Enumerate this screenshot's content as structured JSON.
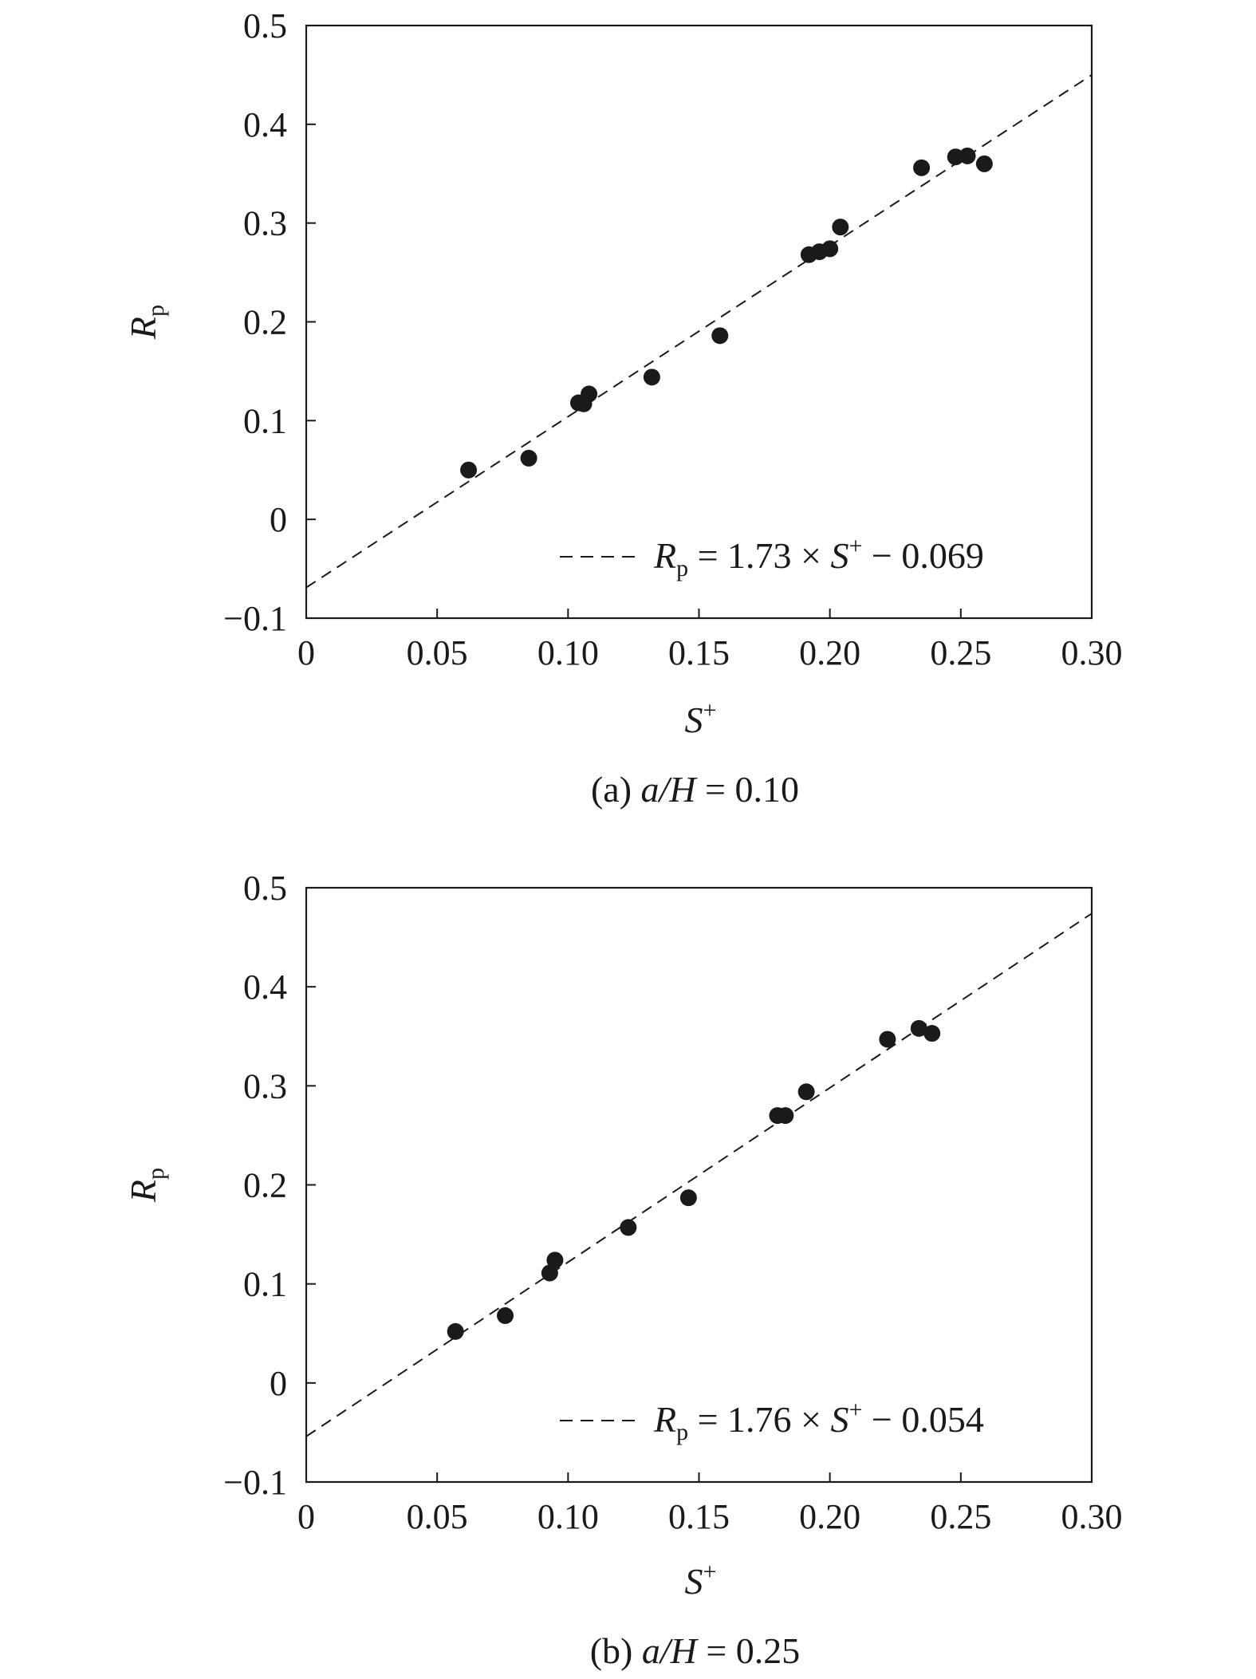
{
  "chart_data": [
    {
      "type": "scatter",
      "caption": "(a) a/H = 0.10",
      "caption_parts": {
        "prefix": "(a) ",
        "var": "a/H",
        "rest": " = 0.10"
      },
      "xlabel": "S⁺",
      "ylabel": "Rp",
      "xlim": [
        0,
        0.3
      ],
      "ylim": [
        -0.1,
        0.5
      ],
      "xticks": [
        "0",
        "0.05",
        "0.10",
        "0.15",
        "0.20",
        "0.25",
        "0.30"
      ],
      "yticks": [
        "−0.1",
        "0",
        "0.1",
        "0.2",
        "0.3",
        "0.4",
        "0.5"
      ],
      "grid": false,
      "legend_position": "bottom-right",
      "legend_parts": {
        "lhs": "R",
        "sub": "p",
        "mid": " = 1.73 × ",
        "svar": "S",
        "sup": "+",
        "rhs": " − 0.069"
      },
      "fit": {
        "slope": 1.73,
        "intercept": -0.069
      },
      "points": [
        {
          "x": 0.062,
          "y": 0.05
        },
        {
          "x": 0.085,
          "y": 0.062
        },
        {
          "x": 0.104,
          "y": 0.118
        },
        {
          "x": 0.106,
          "y": 0.117
        },
        {
          "x": 0.108,
          "y": 0.127
        },
        {
          "x": 0.132,
          "y": 0.144
        },
        {
          "x": 0.158,
          "y": 0.186
        },
        {
          "x": 0.192,
          "y": 0.268
        },
        {
          "x": 0.196,
          "y": 0.271
        },
        {
          "x": 0.2,
          "y": 0.274
        },
        {
          "x": 0.204,
          "y": 0.296
        },
        {
          "x": 0.235,
          "y": 0.356
        },
        {
          "x": 0.248,
          "y": 0.367
        },
        {
          "x": 0.2525,
          "y": 0.368
        },
        {
          "x": 0.259,
          "y": 0.36
        }
      ]
    },
    {
      "type": "scatter",
      "caption": "(b) a/H = 0.25",
      "caption_parts": {
        "prefix": "(b) ",
        "var": "a/H",
        "rest": " = 0.25"
      },
      "xlabel": "S⁺",
      "ylabel": "Rp",
      "xlim": [
        0,
        0.3
      ],
      "ylim": [
        -0.1,
        0.5
      ],
      "xticks": [
        "0",
        "0.05",
        "0.10",
        "0.15",
        "0.20",
        "0.25",
        "0.30"
      ],
      "yticks": [
        "−0.1",
        "0",
        "0.1",
        "0.2",
        "0.3",
        "0.4",
        "0.5"
      ],
      "grid": false,
      "legend_position": "bottom-right",
      "legend_parts": {
        "lhs": "R",
        "sub": "p",
        "mid": " = 1.76 × ",
        "svar": "S",
        "sup": "+",
        "rhs": " − 0.054"
      },
      "fit": {
        "slope": 1.76,
        "intercept": -0.054
      },
      "points": [
        {
          "x": 0.057,
          "y": 0.052
        },
        {
          "x": 0.076,
          "y": 0.068
        },
        {
          "x": 0.093,
          "y": 0.111
        },
        {
          "x": 0.095,
          "y": 0.124
        },
        {
          "x": 0.123,
          "y": 0.157
        },
        {
          "x": 0.146,
          "y": 0.187
        },
        {
          "x": 0.18,
          "y": 0.27
        },
        {
          "x": 0.183,
          "y": 0.27
        },
        {
          "x": 0.191,
          "y": 0.294
        },
        {
          "x": 0.222,
          "y": 0.347
        },
        {
          "x": 0.234,
          "y": 0.358
        },
        {
          "x": 0.239,
          "y": 0.353
        }
      ]
    }
  ]
}
